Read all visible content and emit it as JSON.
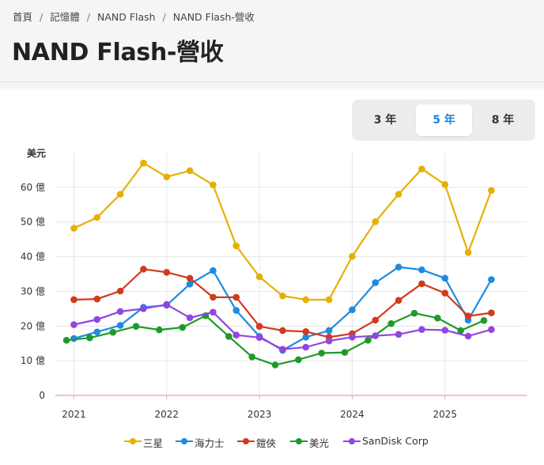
{
  "breadcrumb": {
    "items": [
      "首頁",
      "記憶體",
      "NAND Flash",
      "NAND Flash-營收"
    ],
    "separator": "/"
  },
  "page": {
    "title": "NAND Flash-營收"
  },
  "range_selector": {
    "options": [
      "3 年",
      "5 年",
      "8 年"
    ],
    "active": "5 年"
  },
  "chart_data": {
    "type": "line",
    "ylabel": "美元",
    "ylim": [
      0,
      70
    ],
    "yticks": [
      0,
      10,
      20,
      30,
      40,
      50,
      60
    ],
    "ytick_labels": [
      "0",
      "10 億",
      "20 億",
      "30 億",
      "40 億",
      "50 億",
      "60 億"
    ],
    "x_tick_labels": [
      "2021",
      "2022",
      "2023",
      "2024",
      "2025"
    ],
    "x_tick_values": [
      2021.0,
      2022.0,
      2023.0,
      2024.0,
      2025.0
    ],
    "xlim": [
      2020.8,
      2025.88
    ],
    "grid": true,
    "legend_position": "bottom",
    "series": [
      {
        "name": "三星",
        "color": "#e6b000",
        "x": [
          2021.0,
          2021.25,
          2021.5,
          2021.75,
          2022.0,
          2022.25,
          2022.5,
          2022.75,
          2023.0,
          2023.25,
          2023.5,
          2023.75,
          2024.0,
          2024.25,
          2024.5,
          2024.75,
          2025.0,
          2025.25,
          2025.5
        ],
        "values": [
          48.2,
          51.3,
          58.0,
          67.0,
          63.0,
          64.8,
          60.7,
          43.1,
          34.2,
          28.7,
          27.6,
          27.6,
          40.1,
          50.1,
          58.0,
          65.3,
          60.8,
          41.2,
          59.1
        ]
      },
      {
        "name": "海力士",
        "color": "#1d8be0",
        "x": [
          2021.0,
          2021.25,
          2021.5,
          2021.75,
          2022.0,
          2022.25,
          2022.5,
          2022.75,
          2023.0,
          2023.25,
          2023.5,
          2023.75,
          2024.0,
          2024.25,
          2024.5,
          2024.75,
          2025.0,
          2025.25,
          2025.5
        ],
        "values": [
          16.4,
          18.3,
          20.2,
          25.4,
          26.0,
          32.1,
          36.0,
          24.5,
          17.0,
          13.0,
          16.8,
          18.7,
          24.7,
          32.5,
          37.0,
          36.2,
          33.8,
          21.7,
          33.4
        ]
      },
      {
        "name": "鎧俠",
        "color": "#d23a1e",
        "x": [
          2021.0,
          2021.25,
          2021.5,
          2021.75,
          2022.0,
          2022.25,
          2022.5,
          2022.75,
          2023.0,
          2023.25,
          2023.5,
          2023.75,
          2024.0,
          2024.25,
          2024.5,
          2024.75,
          2025.0,
          2025.25,
          2025.5
        ],
        "values": [
          27.6,
          27.8,
          30.1,
          36.4,
          35.5,
          33.8,
          28.3,
          28.3,
          19.9,
          18.7,
          18.4,
          16.8,
          17.8,
          21.7,
          27.4,
          32.2,
          29.5,
          22.9,
          23.8
        ]
      },
      {
        "name": "美光",
        "color": "#1e9a2a",
        "x": [
          2020.92,
          2021.17,
          2021.42,
          2021.67,
          2021.92,
          2022.17,
          2022.42,
          2022.67,
          2022.92,
          2023.17,
          2023.42,
          2023.67,
          2023.92,
          2024.17,
          2024.42,
          2024.67,
          2024.92,
          2025.17,
          2025.42
        ],
        "values": [
          15.9,
          16.6,
          18.2,
          19.9,
          18.9,
          19.6,
          23.0,
          17.0,
          11.1,
          8.8,
          10.3,
          12.2,
          12.4,
          15.9,
          20.7,
          23.7,
          22.3,
          18.7,
          21.6
        ]
      },
      {
        "name": "SanDisk Corp",
        "color": "#9245e0",
        "x": [
          2021.0,
          2021.25,
          2021.5,
          2021.75,
          2022.0,
          2022.25,
          2022.5,
          2022.75,
          2023.0,
          2023.25,
          2023.5,
          2023.75,
          2024.0,
          2024.25,
          2024.5,
          2024.75,
          2025.0,
          2025.25,
          2025.5
        ],
        "values": [
          20.4,
          21.9,
          24.2,
          25.0,
          26.2,
          22.4,
          24.0,
          17.4,
          16.7,
          13.3,
          13.9,
          15.7,
          16.8,
          17.2,
          17.6,
          19.0,
          18.8,
          17.1,
          19.0
        ]
      }
    ]
  }
}
